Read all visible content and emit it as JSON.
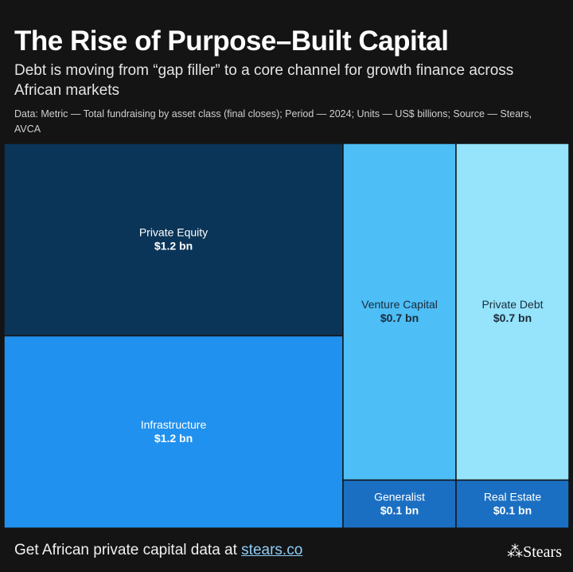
{
  "chart_data": {
    "type": "treemap",
    "title": "The Rise of Purpose–Built Capital",
    "subtitle": "Debt is moving from “gap filler” to a core channel for growth finance across African markets",
    "note": "Data: Metric — Total fundraising by asset class (final closes); Period — 2024; Units — US$ billions; Source — Stears, AVCA",
    "categories": [
      "Private Equity",
      "Infrastructure",
      "Venture Capital",
      "Generalist",
      "Private Debt",
      "Real Estate"
    ],
    "values": [
      1.2,
      1.2,
      0.7,
      0.1,
      0.7,
      0.1
    ],
    "value_labels": [
      "$1.2 bn",
      "$1.2 bn",
      "$0.7 bn",
      "$0.1 bn",
      "$0.7 bn",
      "$0.1 bn"
    ],
    "colors": [
      "#0b3558",
      "#2091ee",
      "#4dbef6",
      "#1b6fc2",
      "#95e4fc",
      "#1b6fc2"
    ]
  },
  "footer": {
    "text": "Get African private capital data at",
    "link": "stears.co"
  },
  "logo": "Stears"
}
